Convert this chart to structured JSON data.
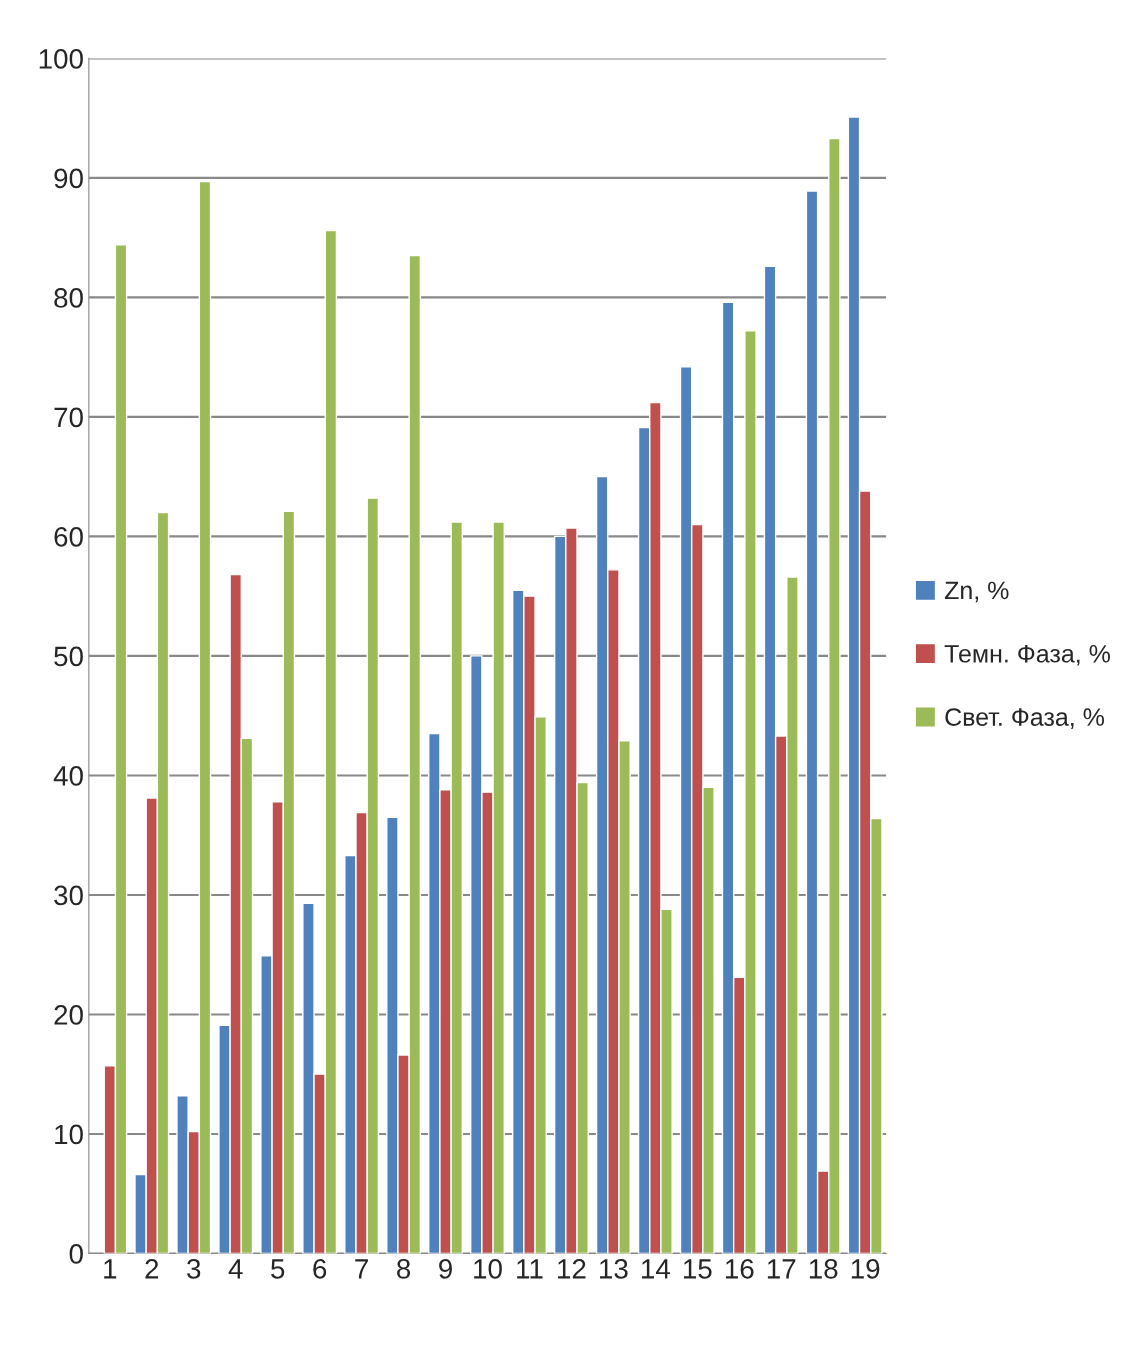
{
  "chart_data": {
    "type": "bar",
    "categories": [
      "1",
      "2",
      "3",
      "4",
      "5",
      "6",
      "7",
      "8",
      "9",
      "10",
      "11",
      "12",
      "13",
      "14",
      "15",
      "16",
      "17",
      "18",
      "19"
    ],
    "series": [
      {
        "name": "Zn, %",
        "color": "#4f81bd",
        "values": [
          null,
          6.6,
          13.2,
          19.1,
          24.9,
          29.3,
          33.3,
          36.5,
          43.5,
          50.0,
          55.5,
          60.0,
          65.0,
          69.1,
          74.2,
          79.6,
          82.6,
          88.9,
          95.1
        ]
      },
      {
        "name": "Темн. Фаза, %",
        "color": "#c0504d",
        "values": [
          15.7,
          38.1,
          10.2,
          56.8,
          37.8,
          15.0,
          36.9,
          16.6,
          38.8,
          38.6,
          55.0,
          60.7,
          57.2,
          71.2,
          61.0,
          23.1,
          43.3,
          6.9,
          63.8
        ]
      },
      {
        "name": "Свет. Фаза, %",
        "color": "#9bbb59",
        "values": [
          84.4,
          62.0,
          89.7,
          43.1,
          62.1,
          85.6,
          63.2,
          83.5,
          61.2,
          61.2,
          44.9,
          39.4,
          42.9,
          28.8,
          39.0,
          77.2,
          56.6,
          93.3,
          36.4
        ]
      }
    ],
    "ylim": [
      0,
      100
    ],
    "yticks": [
      0,
      10,
      20,
      30,
      40,
      50,
      60,
      70,
      80,
      90,
      100
    ],
    "grid": "y",
    "legend": "right"
  }
}
